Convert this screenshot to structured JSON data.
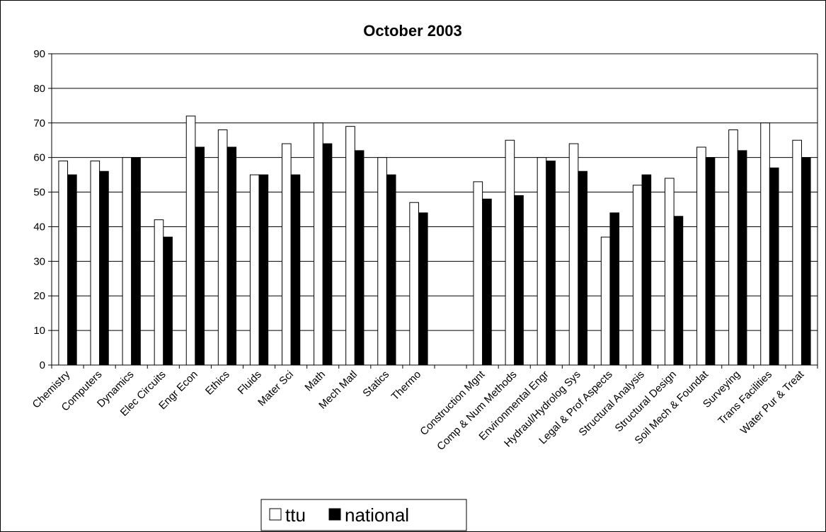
{
  "chart_data": {
    "type": "bar",
    "title": "October 2003",
    "xlabel": "",
    "ylabel": "",
    "ylim": [
      0,
      90
    ],
    "yticks": [
      0,
      10,
      20,
      30,
      40,
      50,
      60,
      70,
      80,
      90
    ],
    "grid": true,
    "legend_position": "bottom",
    "categories": [
      "Chemistry",
      "Computers",
      "Dynamics",
      "Elec Circuits",
      "Engr Econ",
      "Ethics",
      "Fluids",
      "Mater Sci",
      "Math",
      "Mech Matl",
      "Statics",
      "Thermo",
      "",
      "Construction Mgnt",
      "Comp & Num Methods",
      "Environmental Engr",
      "Hydraul/Hydrolog Sys",
      "Legal & Prof Aspects",
      "Structural Analysis",
      "Structural Design",
      "Soil Mech & Foundat",
      "Surveying",
      "Trans Facilities",
      "Water Pur & Treat"
    ],
    "series": [
      {
        "name": "ttu",
        "color": "#ffffff",
        "values": [
          59,
          59,
          60,
          42,
          72,
          68,
          55,
          64,
          70,
          69,
          60,
          47,
          null,
          53,
          65,
          60,
          64,
          37,
          52,
          54,
          63,
          68,
          70,
          65
        ]
      },
      {
        "name": "national",
        "color": "#000000",
        "values": [
          55,
          56,
          60,
          37,
          63,
          63,
          55,
          55,
          64,
          62,
          55,
          44,
          null,
          48,
          49,
          59,
          56,
          44,
          55,
          43,
          60,
          62,
          57,
          60
        ]
      }
    ]
  }
}
